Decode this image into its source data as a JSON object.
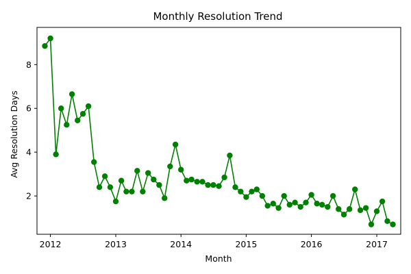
{
  "chart_data": {
    "type": "line",
    "title": "Monthly Resolution Trend",
    "xlabel": "Month",
    "ylabel": "Avg Resolution Days",
    "x_ticks": [
      "2012",
      "2013",
      "2014",
      "2015",
      "2016",
      "2017"
    ],
    "y_ticks": [
      2,
      4,
      6,
      8
    ],
    "xlim": [
      "2011-10-18",
      "2017-05-15"
    ],
    "ylim": [
      0.25,
      9.7
    ],
    "grid": false,
    "legend": "none",
    "color": "#008000",
    "marker": "circle",
    "series": [
      {
        "x": [
          "2011-12-01",
          "2012-01-01",
          "2012-02-01",
          "2012-03-01",
          "2012-04-01",
          "2012-05-01",
          "2012-06-01",
          "2012-07-01",
          "2012-08-01",
          "2012-09-01",
          "2012-10-01",
          "2012-11-01",
          "2012-12-01",
          "2013-01-01",
          "2013-02-01",
          "2013-03-01",
          "2013-04-01",
          "2013-05-01",
          "2013-06-01",
          "2013-07-01",
          "2013-08-01",
          "2013-09-01",
          "2013-10-01",
          "2013-11-01",
          "2013-12-01",
          "2014-01-01",
          "2014-02-01",
          "2014-03-01",
          "2014-04-01",
          "2014-05-01",
          "2014-06-01",
          "2014-07-01",
          "2014-08-01",
          "2014-09-01",
          "2014-10-01",
          "2014-11-01",
          "2014-12-01",
          "2015-01-01",
          "2015-02-01",
          "2015-03-01",
          "2015-04-01",
          "2015-05-01",
          "2015-06-01",
          "2015-07-01",
          "2015-08-01",
          "2015-09-01",
          "2015-10-01",
          "2015-11-01",
          "2015-12-01",
          "2016-01-01",
          "2016-02-01",
          "2016-03-01",
          "2016-04-01",
          "2016-05-01",
          "2016-06-01",
          "2016-07-01",
          "2016-08-01",
          "2016-09-01",
          "2016-10-01",
          "2016-11-01",
          "2016-12-01",
          "2017-01-01",
          "2017-02-01",
          "2017-03-01",
          "2017-04-01"
        ],
        "values": [
          8.85,
          9.2,
          3.9,
          6.0,
          5.25,
          6.65,
          5.45,
          5.75,
          6.1,
          3.55,
          2.4,
          2.9,
          2.4,
          1.75,
          2.7,
          2.2,
          2.2,
          3.15,
          2.2,
          3.05,
          2.75,
          2.5,
          1.9,
          3.35,
          4.35,
          3.2,
          2.7,
          2.75,
          2.65,
          2.65,
          2.5,
          2.5,
          2.45,
          2.85,
          3.85,
          2.4,
          2.2,
          1.95,
          2.2,
          2.3,
          2.0,
          1.55,
          1.65,
          1.45,
          2.0,
          1.6,
          1.7,
          1.5,
          1.7,
          2.05,
          1.65,
          1.6,
          1.5,
          2.0,
          1.4,
          1.15,
          1.4,
          2.3,
          1.35,
          1.45,
          0.7,
          1.3,
          1.75,
          0.85,
          0.7
        ]
      }
    ]
  }
}
